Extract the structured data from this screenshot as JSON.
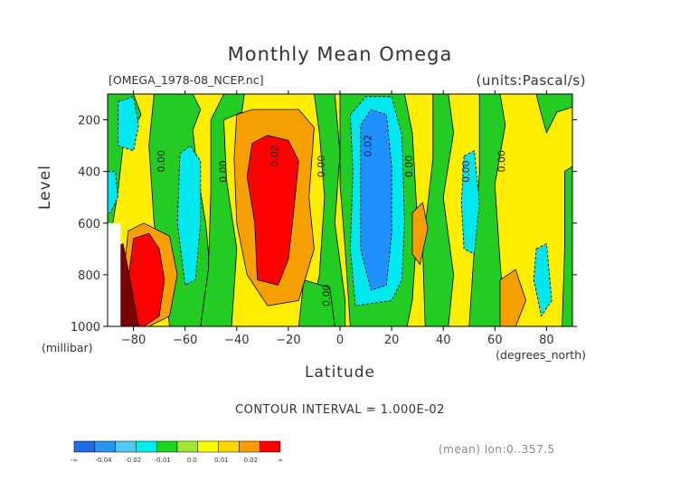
{
  "chart_data": {
    "type": "contour",
    "title": "Monthly Mean Omega",
    "file_label": "[OMEGA_1978-08_NCEP.nc]",
    "units_label": "(units:Pascal/s)",
    "ylabel": "Level",
    "yunits": "(millibar)",
    "xlabel": "Latitude",
    "xunits": "(degrees_north)",
    "xlim": [
      -90,
      90
    ],
    "ylim": [
      1000,
      100
    ],
    "x_ticks": [
      -80,
      -60,
      -40,
      -20,
      0,
      20,
      40,
      60,
      80
    ],
    "x_tick_labels": [
      "−80",
      "−60",
      "−40",
      "−20",
      "0",
      "20",
      "40",
      "60",
      "80"
    ],
    "y_ticks": [
      200,
      400,
      600,
      800,
      1000
    ],
    "y_tick_labels": [
      "200",
      "400",
      "600",
      "800",
      "1000"
    ],
    "contour_interval_text": "CONTOUR INTERVAL = 1.000E-02",
    "mean_note": "(mean) lon:0..357.5",
    "contour_labels": [
      "0.00",
      "0.00",
      "0.02",
      "0.00",
      "0.02",
      "0.00",
      "0.00",
      "0.00",
      "0.00"
    ],
    "colorbar": {
      "colors": [
        "#1e6ee6",
        "#2896f0",
        "#50c8f0",
        "#00f0f0",
        "#1ed21e",
        "#a0e632",
        "#ffff00",
        "#ffd700",
        "#ff9b00",
        "#ff0000"
      ],
      "labels": [
        "-∞",
        "-0.04",
        "-0.02",
        "-0.01",
        "0.0",
        "0.01",
        "0.02",
        "∞"
      ]
    },
    "fill_colors": {
      "green": "#22cc22",
      "yellow": "#ffee00",
      "orange": "#f5a000",
      "red": "#ff0000",
      "cyan": "#00e8ee",
      "blue": "#1e90ff",
      "darkred": "#7a0000"
    }
  }
}
